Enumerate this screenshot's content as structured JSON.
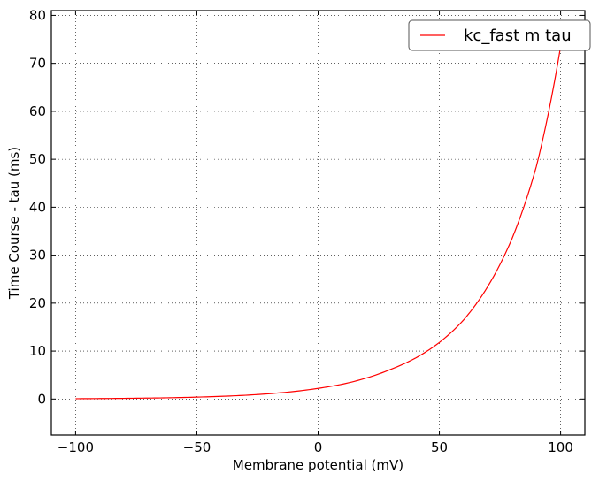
{
  "chart_data": {
    "type": "line",
    "xlabel": "Membrane potential (mV)",
    "ylabel": "Time Course - tau (ms)",
    "xlim": [
      -110,
      110
    ],
    "ylim": [
      -7.5,
      81
    ],
    "xticks": [
      -100,
      -50,
      0,
      50,
      100
    ],
    "xtick_labels": [
      "−100",
      "−50",
      "0",
      "50",
      "100"
    ],
    "yticks": [
      0,
      10,
      20,
      30,
      40,
      50,
      60,
      70,
      80
    ],
    "ytick_labels": [
      "0",
      "10",
      "20",
      "30",
      "40",
      "50",
      "60",
      "70",
      "80"
    ],
    "grid": true,
    "legend_position": "top-right",
    "series": [
      {
        "name": "kc_fast m tau",
        "color": "#ff0000",
        "x": [
          -100,
          -90,
          -80,
          -70,
          -60,
          -50,
          -40,
          -30,
          -20,
          -10,
          0,
          10,
          20,
          30,
          40,
          50,
          60,
          70,
          80,
          90,
          100
        ],
        "y": [
          0.07,
          0.1,
          0.14,
          0.2,
          0.28,
          0.4,
          0.56,
          0.79,
          1.12,
          1.58,
          2.23,
          3.1,
          4.4,
          6.2,
          8.5,
          11.8,
          16.5,
          23.5,
          33.5,
          48.5,
          73.5
        ]
      }
    ]
  }
}
